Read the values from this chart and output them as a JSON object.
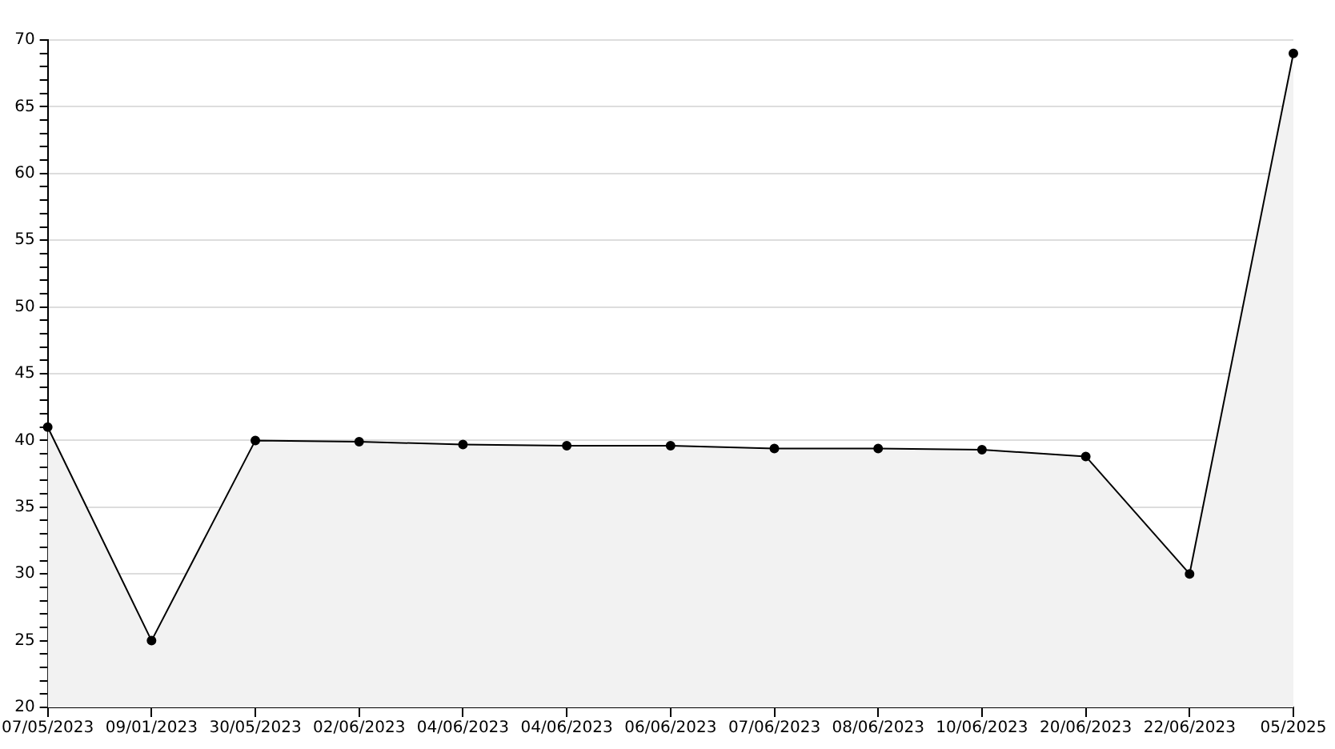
{
  "chart_data": {
    "type": "area",
    "categories": [
      "07/05/2023",
      "09/01/2023",
      "30/05/2023",
      "02/06/2023",
      "04/06/2023",
      "04/06/2023",
      "06/06/2023",
      "07/06/2023",
      "08/06/2023",
      "10/06/2023",
      "20/06/2023",
      "22/06/2023",
      "05/2025"
    ],
    "series": [
      {
        "color": "#000000",
        "values": [
          41,
          25,
          40,
          39.9,
          39.7,
          39.6,
          39.6,
          39.4,
          39.4,
          39.3,
          38.8,
          30,
          69
        ]
      }
    ],
    "ylim": [
      20,
      70
    ],
    "yticks": [
      20,
      {
        "value": 21,
        "label": null
      },
      {
        "value": 22,
        "label": null
      },
      {
        "value": 23,
        "label": null
      },
      {
        "value": 24,
        "label": null
      },
      25,
      {
        "value": 26,
        "label": null
      },
      {
        "value": 27,
        "label": null
      },
      {
        "value": 28,
        "label": null
      },
      {
        "value": 29,
        "label": null
      },
      30,
      {
        "value": 31,
        "label": null
      },
      {
        "value": 32,
        "label": null
      },
      {
        "value": 33,
        "label": null
      },
      {
        "value": 34,
        "label": null
      },
      35,
      {
        "value": 36,
        "label": null
      },
      {
        "value": 37,
        "label": null
      },
      {
        "value": 38,
        "label": null
      },
      {
        "value": 39,
        "label": null
      },
      40,
      {
        "value": 41,
        "label": null
      },
      {
        "value": 42,
        "label": null
      },
      {
        "value": 43,
        "label": null
      },
      {
        "value": 44,
        "label": null
      },
      45,
      {
        "value": 46,
        "label": null
      },
      {
        "value": 47,
        "label": null
      },
      {
        "value": 48,
        "label": null
      },
      {
        "value": 49,
        "label": null
      },
      50,
      {
        "value": 51,
        "label": null
      },
      {
        "value": 52,
        "label": null
      },
      {
        "value": 53,
        "label": null
      },
      {
        "value": 54,
        "label": null
      },
      55,
      {
        "value": 56,
        "label": null
      },
      {
        "value": 57,
        "label": null
      },
      {
        "value": 58,
        "label": null
      },
      {
        "value": 59,
        "label": null
      },
      60,
      {
        "value": 61,
        "label": null
      },
      {
        "value": 62,
        "label": null
      },
      {
        "value": 63,
        "label": null
      },
      {
        "value": 64,
        "label": null
      },
      65,
      {
        "value": 66,
        "label": null
      },
      {
        "value": 67,
        "label": null
      },
      {
        "value": 68,
        "label": null
      },
      {
        "value": 69,
        "label": null
      },
      70
    ],
    "grid": "y",
    "legend": false,
    "marker": "circle",
    "line_style": "solid"
  }
}
